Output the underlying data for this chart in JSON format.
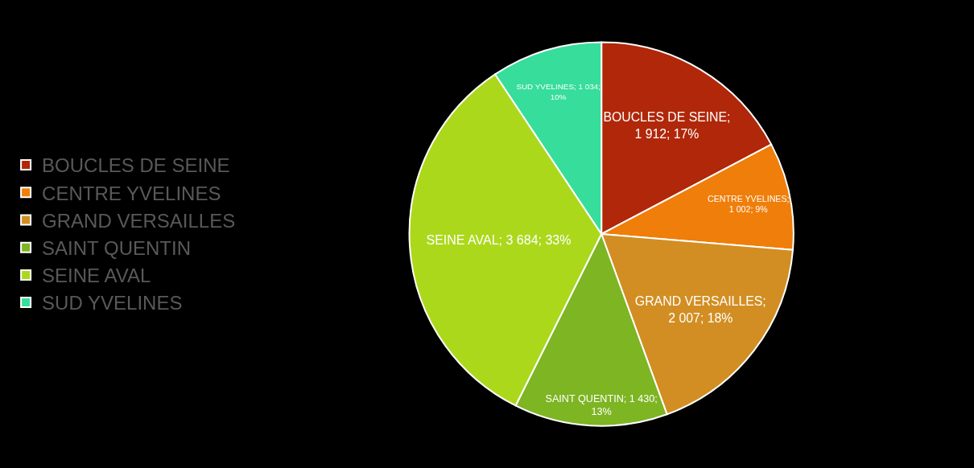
{
  "chart_data": {
    "type": "pie",
    "categories": [
      "BOUCLES DE SEINE",
      "CENTRE YVELINES",
      "GRAND VERSAILLES",
      "SAINT QUENTIN",
      "SEINE AVAL",
      "SUD YVELINES"
    ],
    "values": [
      1912,
      1002,
      2007,
      1430,
      3684,
      1034
    ],
    "colors": [
      "#b0270a",
      "#ef7e0a",
      "#d28e22",
      "#7db523",
      "#acd81c",
      "#37dd9b"
    ],
    "value_labels": [
      "BOUCLES DE SEINE; 1 912; 17%",
      "CENTRE YVELINES; 1 002; 9%",
      "GRAND VERSAILLES; 2 007; 18%",
      "SAINT QUENTIN; 1 430; 13%",
      "SEINE AVAL; 3 684; 33%",
      "SUD YVELINES; 1 034; 10%"
    ],
    "legend": "left"
  }
}
